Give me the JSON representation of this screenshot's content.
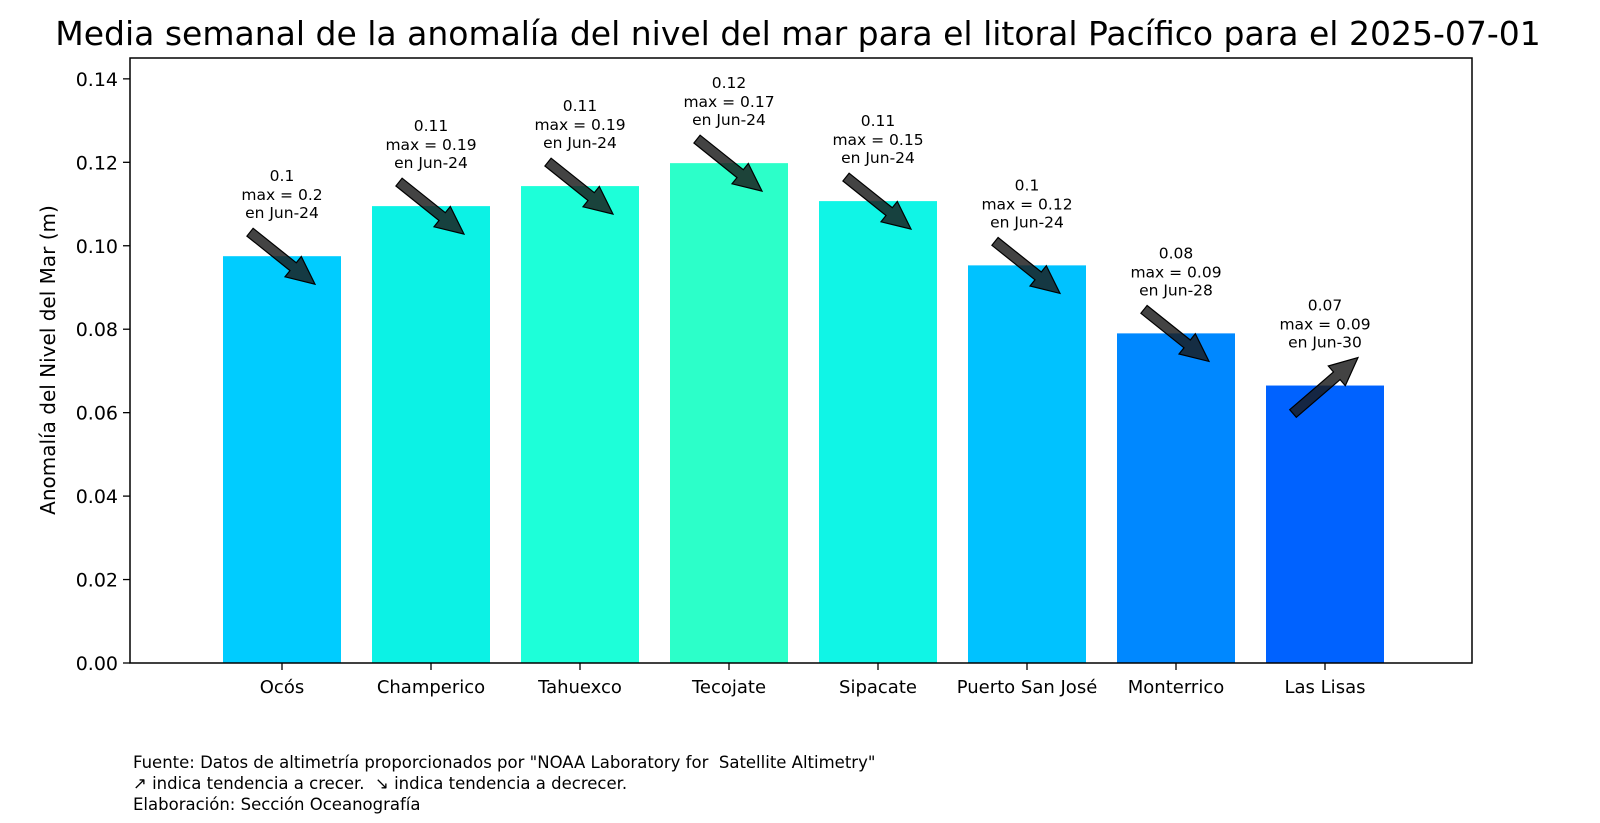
{
  "chart_data": {
    "type": "bar",
    "title": "Media semanal de la anomalía del nivel del mar para el litoral Pacífico para el 2025-07-01",
    "xlabel": "",
    "ylabel": "Anomalía del Nivel del Mar (m)",
    "ylim": [
      0,
      0.145
    ],
    "yticks": [
      "0.00",
      "0.02",
      "0.04",
      "0.06",
      "0.08",
      "0.10",
      "0.12",
      "0.14"
    ],
    "ytick_values": [
      0,
      0.02,
      0.04,
      0.06,
      0.08,
      0.1,
      0.12,
      0.14
    ],
    "categories": [
      "Ocós",
      "Champerico",
      "Tahuexco",
      "Tecojate",
      "Sipacate",
      "Puerto San José",
      "Monterrico",
      "Las Lisas"
    ],
    "values": [
      0.0975,
      0.1095,
      0.1143,
      0.1198,
      0.1107,
      0.0953,
      0.079,
      0.0665
    ],
    "colors": [
      "#00ccff",
      "#0cf2e5",
      "#1dffd9",
      "#2cffc9",
      "#10f5e6",
      "#00c2ff",
      "#0088ff",
      "#0062ff"
    ],
    "annotations": [
      {
        "value": "0.1",
        "max": "max = 0.2",
        "date": "en Jun-24",
        "trend": "down"
      },
      {
        "value": "0.11",
        "max": "max = 0.19",
        "date": "en Jun-24",
        "trend": "down"
      },
      {
        "value": "0.11",
        "max": "max = 0.19",
        "date": "en Jun-24",
        "trend": "down"
      },
      {
        "value": "0.12",
        "max": "max = 0.17",
        "date": "en Jun-24",
        "trend": "down"
      },
      {
        "value": "0.11",
        "max": "max = 0.15",
        "date": "en Jun-24",
        "trend": "down"
      },
      {
        "value": "0.1",
        "max": "max = 0.12",
        "date": "en Jun-24",
        "trend": "down"
      },
      {
        "value": "0.08",
        "max": "max = 0.09",
        "date": "en Jun-28",
        "trend": "down"
      },
      {
        "value": "0.07",
        "max": "max = 0.09",
        "date": "en Jun-30",
        "trend": "up"
      }
    ],
    "grid": false,
    "legend": "none"
  },
  "footer": {
    "source": "Fuente: Datos de altimetría proporcionados por \"NOAA Laboratory for  Satellite Altimetry\"",
    "legend_note": "↗ indica tendencia a crecer.  ↘ indica tendencia a decrecer.",
    "credit": "Elaboración: Sección Oceanografía"
  }
}
